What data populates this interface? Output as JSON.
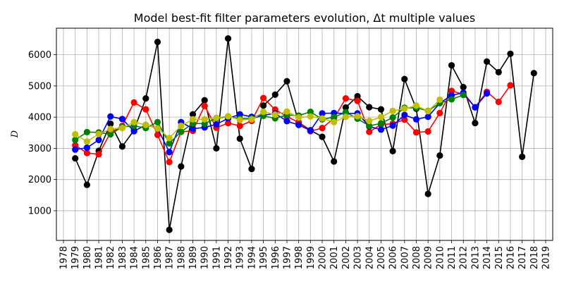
{
  "chart_data": {
    "type": "line",
    "title": "Model best-fit filter parameters evolution, Δt multiple values",
    "xlabel": "",
    "ylabel": "D",
    "x": [
      1978,
      1979,
      1980,
      1981,
      1982,
      1983,
      1984,
      1985,
      1986,
      1987,
      1988,
      1989,
      1990,
      1991,
      1992,
      1993,
      1994,
      1995,
      1996,
      1997,
      1998,
      1999,
      2000,
      2001,
      2002,
      2003,
      2004,
      2005,
      2006,
      2007,
      2008,
      2009,
      2010,
      2011,
      2012,
      2013,
      2014,
      2015,
      2016,
      2017,
      2018,
      2019
    ],
    "xlim": [
      1977.4,
      2019.6
    ],
    "ylim": [
      50,
      6850
    ],
    "yticks": [
      1000,
      2000,
      3000,
      4000,
      5000,
      6000
    ],
    "grid": true,
    "series": [
      {
        "color": "#000000",
        "points": [
          [
            1979,
            2680
          ],
          [
            1980,
            1830
          ],
          [
            1981,
            2920
          ],
          [
            1982,
            3790
          ],
          [
            1983,
            3060
          ],
          [
            1984,
            3580
          ],
          [
            1985,
            4600
          ],
          [
            1986,
            6410
          ],
          [
            1987,
            390
          ],
          [
            1988,
            2420
          ],
          [
            1989,
            4090
          ],
          [
            1990,
            4540
          ],
          [
            1991,
            3000
          ],
          [
            1992,
            6520
          ],
          [
            1993,
            3310
          ],
          [
            1994,
            2340
          ],
          [
            1995,
            4370
          ],
          [
            1996,
            4720
          ],
          [
            1997,
            5150
          ],
          [
            1998,
            3830
          ],
          [
            1999,
            3580
          ],
          [
            2000,
            3370
          ],
          [
            2001,
            2580
          ],
          [
            2002,
            4310
          ],
          [
            2003,
            4670
          ],
          [
            2004,
            4320
          ],
          [
            2005,
            4250
          ],
          [
            2006,
            2910
          ],
          [
            2007,
            5220
          ],
          [
            2008,
            4270
          ],
          [
            2009,
            1540
          ],
          [
            2010,
            2770
          ],
          [
            2011,
            5660
          ],
          [
            2012,
            4960
          ],
          [
            2013,
            3810
          ],
          [
            2014,
            5780
          ],
          [
            2015,
            5440
          ],
          [
            2016,
            6030
          ],
          [
            2017,
            2730
          ],
          [
            2018,
            5410
          ]
        ]
      },
      {
        "color": "#ff0000",
        "points": [
          [
            1979,
            3100
          ],
          [
            1980,
            2850
          ],
          [
            1981,
            2810
          ],
          [
            1982,
            3500
          ],
          [
            1983,
            3720
          ],
          [
            1984,
            4470
          ],
          [
            1985,
            4250
          ],
          [
            1986,
            3430
          ],
          [
            1987,
            2560
          ],
          [
            1988,
            3530
          ],
          [
            1989,
            3560
          ],
          [
            1990,
            4360
          ],
          [
            1991,
            3660
          ],
          [
            1992,
            3810
          ],
          [
            1993,
            3720
          ],
          [
            1994,
            3880
          ],
          [
            1995,
            4610
          ],
          [
            1996,
            4240
          ],
          [
            1997,
            4020
          ],
          [
            1998,
            3830
          ],
          [
            1999,
            3550
          ],
          [
            2000,
            3650
          ],
          [
            2001,
            3960
          ],
          [
            2002,
            4600
          ],
          [
            2003,
            4520
          ],
          [
            2004,
            3530
          ],
          [
            2005,
            3760
          ],
          [
            2006,
            3790
          ],
          [
            2007,
            3920
          ],
          [
            2008,
            3510
          ],
          [
            2009,
            3540
          ],
          [
            2010,
            4130
          ],
          [
            2011,
            4840
          ],
          [
            2012,
            4730
          ],
          [
            2013,
            4320
          ],
          [
            2014,
            4810
          ],
          [
            2015,
            4490
          ],
          [
            2016,
            5020
          ]
        ]
      },
      {
        "color": "#0000ff",
        "points": [
          [
            1979,
            2960
          ],
          [
            1980,
            3020
          ],
          [
            1981,
            3270
          ],
          [
            1982,
            4020
          ],
          [
            1983,
            3940
          ],
          [
            1984,
            3550
          ],
          [
            1985,
            3750
          ],
          [
            1986,
            3640
          ],
          [
            1987,
            2880
          ],
          [
            1988,
            3840
          ],
          [
            1989,
            3630
          ],
          [
            1990,
            3670
          ],
          [
            1991,
            3770
          ],
          [
            1992,
            3960
          ],
          [
            1993,
            4090
          ],
          [
            1994,
            4010
          ],
          [
            1995,
            4060
          ],
          [
            1996,
            4120
          ],
          [
            1997,
            3870
          ],
          [
            1998,
            3750
          ],
          [
            1999,
            3570
          ],
          [
            2000,
            4120
          ],
          [
            2001,
            4130
          ],
          [
            2002,
            4120
          ],
          [
            2003,
            4120
          ],
          [
            2004,
            3700
          ],
          [
            2005,
            3600
          ],
          [
            2006,
            3730
          ],
          [
            2007,
            4070
          ],
          [
            2008,
            3930
          ],
          [
            2009,
            4010
          ],
          [
            2010,
            4450
          ],
          [
            2011,
            4700
          ],
          [
            2012,
            4780
          ],
          [
            2013,
            4310
          ],
          [
            2014,
            4760
          ]
        ]
      },
      {
        "color": "#008000",
        "points": [
          [
            1979,
            3270
          ],
          [
            1980,
            3520
          ],
          [
            1981,
            3510
          ],
          [
            1982,
            3450
          ],
          [
            1983,
            3690
          ],
          [
            1984,
            3720
          ],
          [
            1985,
            3650
          ],
          [
            1986,
            3840
          ],
          [
            1987,
            3160
          ],
          [
            1988,
            3530
          ],
          [
            1989,
            3800
          ],
          [
            1990,
            3790
          ],
          [
            1991,
            3960
          ],
          [
            1992,
            4020
          ],
          [
            1993,
            3950
          ],
          [
            1994,
            3960
          ],
          [
            1995,
            4040
          ],
          [
            1996,
            3960
          ],
          [
            1997,
            4070
          ],
          [
            1998,
            4050
          ],
          [
            1999,
            4170
          ],
          [
            2000,
            3930
          ],
          [
            2001,
            4000
          ],
          [
            2002,
            4160
          ],
          [
            2003,
            3950
          ],
          [
            2004,
            3720
          ],
          [
            2005,
            3800
          ],
          [
            2006,
            3990
          ],
          [
            2007,
            4300
          ],
          [
            2008,
            4300
          ],
          [
            2009,
            4200
          ],
          [
            2010,
            4450
          ],
          [
            2011,
            4570
          ],
          [
            2012,
            4710
          ]
        ]
      },
      {
        "color": "#bfbf00",
        "points": [
          [
            1979,
            3450
          ],
          [
            1980,
            3220
          ],
          [
            1981,
            3460
          ],
          [
            1982,
            3620
          ],
          [
            1983,
            3650
          ],
          [
            1984,
            3840
          ],
          [
            1985,
            3750
          ],
          [
            1986,
            3640
          ],
          [
            1987,
            3330
          ],
          [
            1988,
            3720
          ],
          [
            1989,
            3930
          ],
          [
            1990,
            3930
          ],
          [
            1991,
            3980
          ],
          [
            1992,
            4030
          ],
          [
            1993,
            3910
          ],
          [
            1994,
            3930
          ],
          [
            1995,
            4170
          ],
          [
            1996,
            4080
          ],
          [
            1997,
            4180
          ],
          [
            1998,
            3990
          ],
          [
            1999,
            4020
          ],
          [
            2000,
            3960
          ],
          [
            2001,
            3840
          ],
          [
            2002,
            4010
          ],
          [
            2003,
            4030
          ],
          [
            2004,
            3880
          ],
          [
            2005,
            4000
          ],
          [
            2006,
            4200
          ],
          [
            2007,
            4270
          ],
          [
            2008,
            4370
          ],
          [
            2009,
            4190
          ],
          [
            2010,
            4560
          ]
        ]
      }
    ]
  }
}
